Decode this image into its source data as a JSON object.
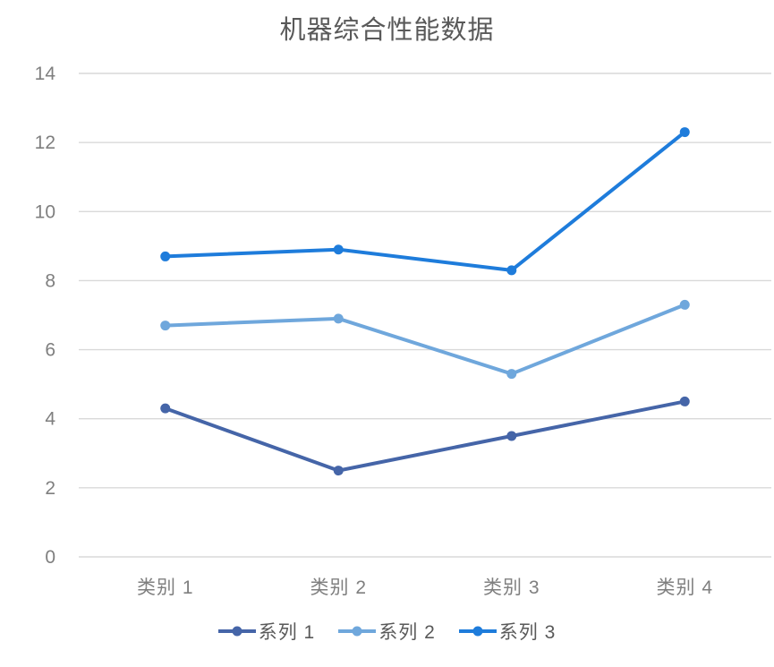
{
  "chart": {
    "title": "机器综合性能数据",
    "title_color": "#595959"
  },
  "chart_data": {
    "type": "line",
    "title": "机器综合性能数据",
    "categories": [
      "类别 1",
      "类别 2",
      "类别 3",
      "类别 4"
    ],
    "series": [
      {
        "name": "系列 1",
        "color": "#4565A8",
        "values": [
          4.3,
          2.5,
          3.5,
          4.5
        ]
      },
      {
        "name": "系列 2",
        "color": "#6FA7DC",
        "values": [
          6.7,
          6.9,
          5.3,
          7.3
        ]
      },
      {
        "name": "系列 3",
        "color": "#1E7CDB",
        "values": [
          8.7,
          8.9,
          8.3,
          12.3
        ]
      }
    ],
    "xlabel": "",
    "ylabel": "",
    "ylim": [
      0,
      14
    ],
    "yticks": [
      0,
      2,
      4,
      6,
      8,
      10,
      12,
      14
    ],
    "grid": true,
    "grid_color": "#D9D9D9",
    "axis_text_color": "#7F7F7F",
    "legend_position": "bottom",
    "legend_text_color": "#595959",
    "marker": "circle"
  }
}
